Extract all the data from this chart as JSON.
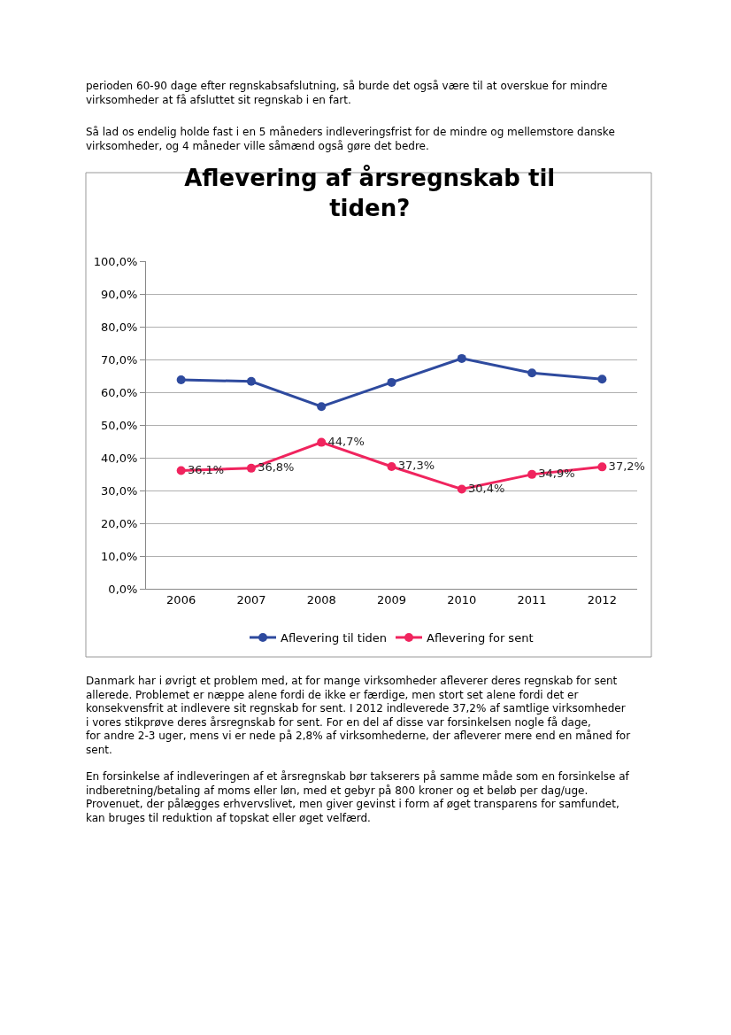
{
  "chart_data": {
    "type": "line",
    "title": "Aflevering af årsregnskab til tiden?",
    "categories": [
      "2006",
      "2007",
      "2008",
      "2009",
      "2010",
      "2011",
      "2012"
    ],
    "series": [
      {
        "name": "Aflevering til tiden",
        "color": "#2e4a9e",
        "values": [
          63.8,
          63.3,
          55.6,
          63.0,
          70.3,
          65.9,
          64.0
        ]
      },
      {
        "name": "Aflevering for sent",
        "color": "#f0245e",
        "values": [
          36.1,
          36.8,
          44.7,
          37.3,
          30.4,
          34.9,
          37.2
        ],
        "value_labels": [
          "36,1%",
          "36,8%",
          "44,7%",
          "37,3%",
          "30,4%",
          "34,9%",
          "37,2%"
        ]
      }
    ],
    "ylim": [
      0,
      100
    ],
    "yticks": [
      {
        "value": 0,
        "label": "0,0%"
      },
      {
        "value": 10,
        "label": "10,0%"
      },
      {
        "value": 20,
        "label": "20,0%"
      },
      {
        "value": 30,
        "label": "30,0%"
      },
      {
        "value": 40,
        "label": "40,0%"
      },
      {
        "value": 50,
        "label": "50,0%"
      },
      {
        "value": 60,
        "label": "60,0%"
      },
      {
        "value": 70,
        "label": "70,0%"
      },
      {
        "value": 80,
        "label": "80,0%"
      },
      {
        "value": 90,
        "label": "90,0%"
      },
      {
        "value": 100,
        "label": "100,0%"
      }
    ],
    "grid": "y",
    "legend": "bottom",
    "marker": "circle",
    "line_style": "solid",
    "annotations": [
      "perioden 60-90 dage efter regnskabsafslutning, så burde det også være til at overskue for mindre virksomheder at få afsluttet sit regnskab i en fart.",
      "Så lad os endelig holde fast i en 5 måneders indleveringsfrist for de mindre og mellemstore danske virksomheder, og 4 måneder ville såmænd også gøre det bedre.",
      "Danmark har i øvrigt et problem med, at for mange virksomheder afleverer deres regnskab for sent allerede. Problemet er næppe alene fordi de ikke er færdige, men stort set alene fordi det er konsekvensfrit at indlevere sit regnskab for sent. I 2012 indleverede 37,2% af samtlige virksomheder i vores stikprøve deres årsregnskab for sent. For en del af disse var forsinkelsen nogle få dage, for andre 2-3 uger, mens vi er nede på 2,8% af virksomhederne, der afleverer mere end en måned for sent.",
      "En forsinkelse af indleveringen af et årsregnskab bør takserers på samme måde som en forsinkelse af indberetning/betaling af moms eller løn, med et gebyr på 800 kroner og et beløb per dag/uge. Provenuet, der pålægges erhvervslivet, men giver gevinst i form af øget transparens for samfundet, kan bruges til reduktion af topskat eller øget velfærd."
    ]
  }
}
